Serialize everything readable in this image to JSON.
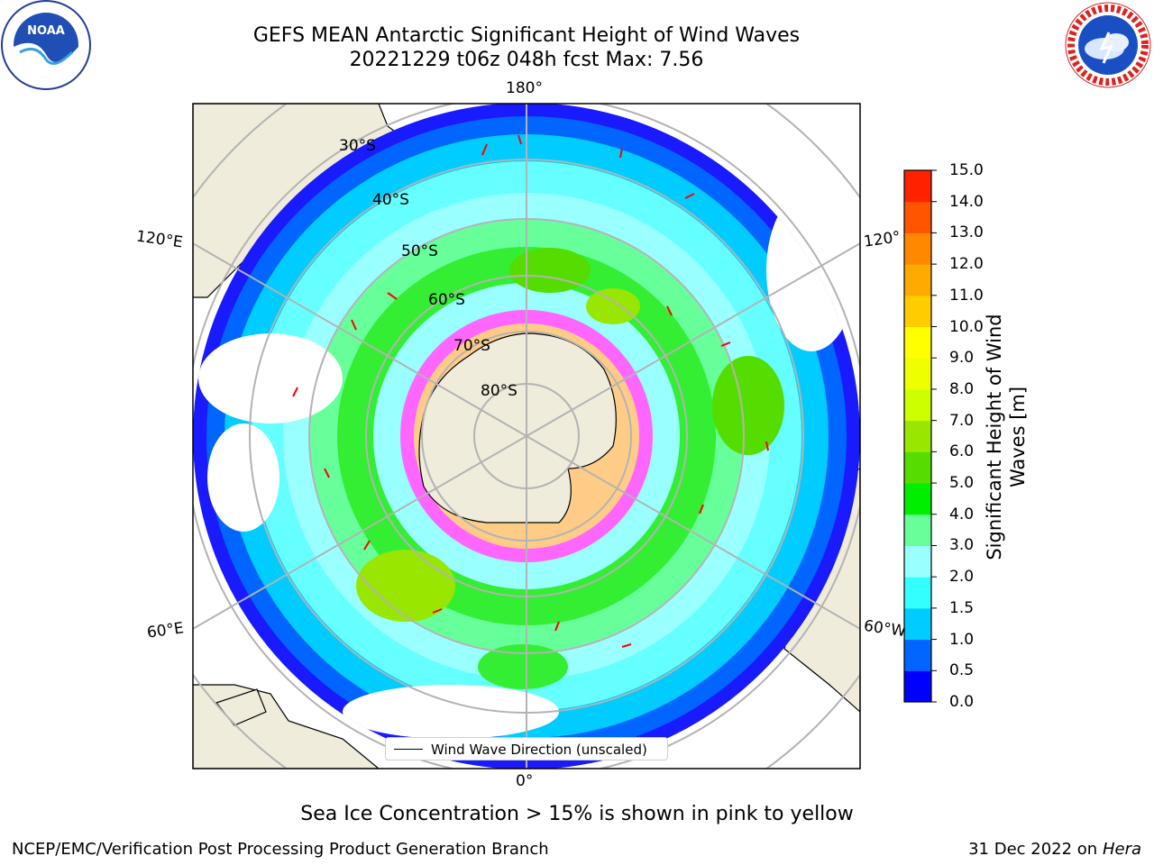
{
  "header": {
    "title_line1": "GEFS MEAN Antarctic Significant Height of Wind Waves",
    "title_line2": "20221229 t06z 048h fcst   Max: 7.56"
  },
  "logos": {
    "left": "NOAA",
    "right": "NATIONAL WEATHER SERVICE"
  },
  "map": {
    "projection": "south-polar-stereographic",
    "latitude_labels": [
      "30°S",
      "40°S",
      "50°S",
      "60°S",
      "70°S",
      "80°S"
    ],
    "longitude_labels": {
      "top": "180°",
      "bottom": "0°",
      "left_upper": "120°E",
      "left_lower": "60°E",
      "right_upper": "120°",
      "right_lower": "60°W"
    },
    "legend_label": "Wind Wave Direction (unscaled)",
    "land_color": "#efecdc",
    "arrow_color": "#ff0000"
  },
  "colorbar": {
    "title_line1": "Significant Height of Wind",
    "title_line2": "Waves [m]",
    "ticks": [
      "0.0",
      "0.5",
      "1.0",
      "1.5",
      "2.0",
      "3.0",
      "4.0",
      "5.0",
      "6.0",
      "7.0",
      "8.0",
      "9.0",
      "10.0",
      "11.0",
      "12.0",
      "13.0",
      "14.0",
      "15.0"
    ],
    "colors": [
      "#0000ff",
      "#0066ff",
      "#00ccff",
      "#33ffff",
      "#99ffff",
      "#66ff99",
      "#00ee00",
      "#55dd00",
      "#99e600",
      "#ccff00",
      "#eeff00",
      "#ffff00",
      "#ffcc00",
      "#ffaa00",
      "#ff8800",
      "#ff5500",
      "#ff2200"
    ]
  },
  "chart_data": {
    "type": "map",
    "title": "GEFS MEAN Antarctic Significant Height of Wind Waves",
    "subtitle": "20221229 t06z 048h fcst   Max: 7.56",
    "variable": "Significant Height of Wind Waves [m]",
    "max_value": 7.56,
    "colorbar_range": [
      0.0,
      15.0
    ]
  },
  "subtitle": "Sea Ice Concentration > 15% is shown in pink to yellow",
  "footer": {
    "left": "NCEP/EMC/Verification Post Processing Product Generation Branch",
    "right_date": "31 Dec 2022 on",
    "right_host": "Hera"
  }
}
